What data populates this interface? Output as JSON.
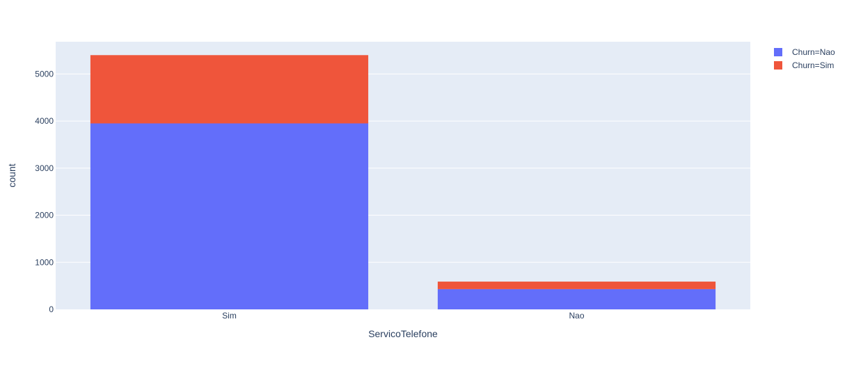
{
  "chart_data": {
    "type": "bar",
    "barmode": "stack",
    "categories": [
      "Sim",
      "Nao"
    ],
    "series": [
      {
        "name": "Churn=Nao",
        "values": [
          3950,
          430
        ],
        "color": "#636efa"
      },
      {
        "name": "Churn=Sim",
        "values": [
          1450,
          160
        ],
        "color": "#ef553b"
      }
    ],
    "xlabel": "ServicoTelefone",
    "ylabel": "count",
    "ylim": [
      0,
      5685
    ],
    "yticks": [
      0,
      1000,
      2000,
      3000,
      4000,
      5000
    ],
    "grid": true,
    "legend_position": "top-right",
    "plot_background": "#e5ecf6"
  }
}
